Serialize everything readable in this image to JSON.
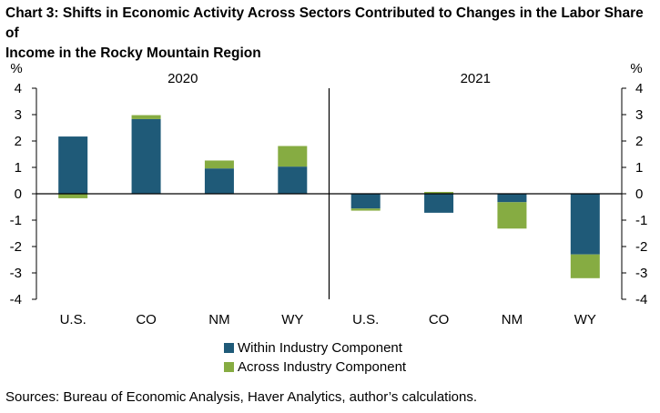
{
  "title_lines": [
    "Chart 3: Shifts in Economic Activity Across Sectors Contributed to Changes in the Labor Share of",
    "Income in the Rocky Mountain Region"
  ],
  "source": "Sources: Bureau of Economic Analysis, Haver Analytics, author’s calculations.",
  "colors": {
    "within": "#1f5a78",
    "across": "#86ac42"
  },
  "chart_data": {
    "type": "bar",
    "stacked": true,
    "title": "Chart 3: Shifts in Economic Activity Across Sectors Contributed to Changes in the Labor Share of Income in the Rocky Mountain Region",
    "ylabel_left": "%",
    "ylabel_right": "%",
    "ylim": [
      -4,
      4
    ],
    "yticks": [
      "4",
      "3",
      "2",
      "1",
      "0",
      "-1",
      "-2",
      "-3",
      "-4"
    ],
    "panels": [
      "2020",
      "2021"
    ],
    "categories": [
      "U.S.",
      "CO",
      "NM",
      "WY",
      "U.S.",
      "CO",
      "NM",
      "WY"
    ],
    "series": [
      {
        "name": "Within Industry Component",
        "values": [
          2.17,
          2.83,
          0.96,
          1.03,
          -0.56,
          -0.72,
          -0.32,
          -2.3
        ]
      },
      {
        "name": "Across Industry Component",
        "values": [
          -0.17,
          0.15,
          0.3,
          0.78,
          -0.08,
          0.07,
          -1.0,
          -0.9
        ]
      }
    ],
    "legend_position": "bottom"
  }
}
